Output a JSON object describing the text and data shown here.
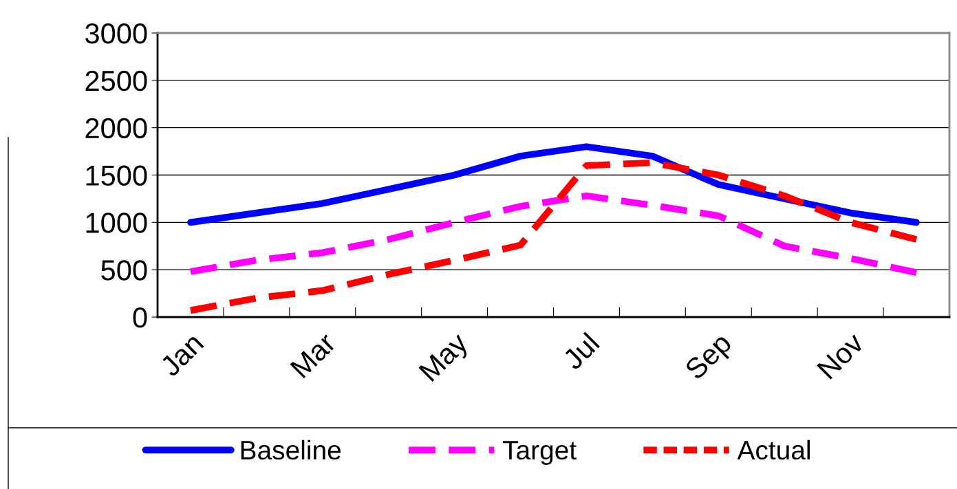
{
  "chart_data": {
    "type": "line",
    "categories": [
      "Jan",
      null,
      "Mar",
      null,
      "May",
      null,
      "Jul",
      null,
      "Sep",
      null,
      "Nov",
      null
    ],
    "series": [
      {
        "name": "Baseline",
        "color": "#0000ff",
        "line_style": "solid",
        "values": [
          1000,
          1100,
          1200,
          1350,
          1500,
          1700,
          1800,
          1700,
          1400,
          1250,
          1100,
          1000
        ]
      },
      {
        "name": "Target",
        "color": "#ff00ff",
        "line_style": "dashed",
        "values": [
          480,
          600,
          680,
          820,
          1000,
          1170,
          1280,
          1180,
          1070,
          750,
          620,
          470
        ]
      },
      {
        "name": "Actual",
        "color": "#ff0000",
        "line_style": "dotted",
        "values": [
          70,
          200,
          280,
          450,
          600,
          760,
          1600,
          1630,
          1500,
          1280,
          1000,
          820
        ]
      }
    ],
    "ylim": [
      0,
      3000
    ],
    "yticks": [
      0,
      500,
      1000,
      1500,
      2000,
      2500,
      3000
    ],
    "grid": "y",
    "legend": "bottom",
    "marker": "none"
  }
}
